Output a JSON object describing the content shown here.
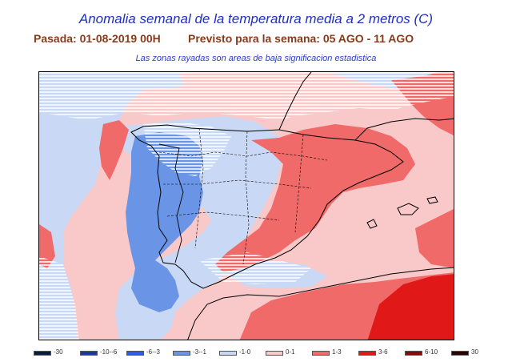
{
  "header": {
    "title": "Anomalia semanal de la temperatura media a 2 metros (C)",
    "run": "Pasada: 01-08-2019 00H",
    "forecast": "Previsto para la semana:  05 AGO - 11 AGO",
    "note": "Las zonas rayadas son areas de baja significacion estadistica"
  },
  "legend": [
    {
      "label": "-30",
      "color": "#0a1a3a"
    },
    {
      "label": "-10--6",
      "color": "#1a3a9a"
    },
    {
      "label": "-6--3",
      "color": "#2f5be8"
    },
    {
      "label": "-3--1",
      "color": "#6a95e6"
    },
    {
      "label": "-1-0",
      "color": "#c9d9f5"
    },
    {
      "label": "0-1",
      "color": "#f9c9c9"
    },
    {
      "label": "1-3",
      "color": "#f06a6a"
    },
    {
      "label": "3-6",
      "color": "#e01818"
    },
    {
      "label": "6-10",
      "color": "#8a0a0a"
    },
    {
      "label": "30",
      "color": "#2a0505"
    }
  ]
}
